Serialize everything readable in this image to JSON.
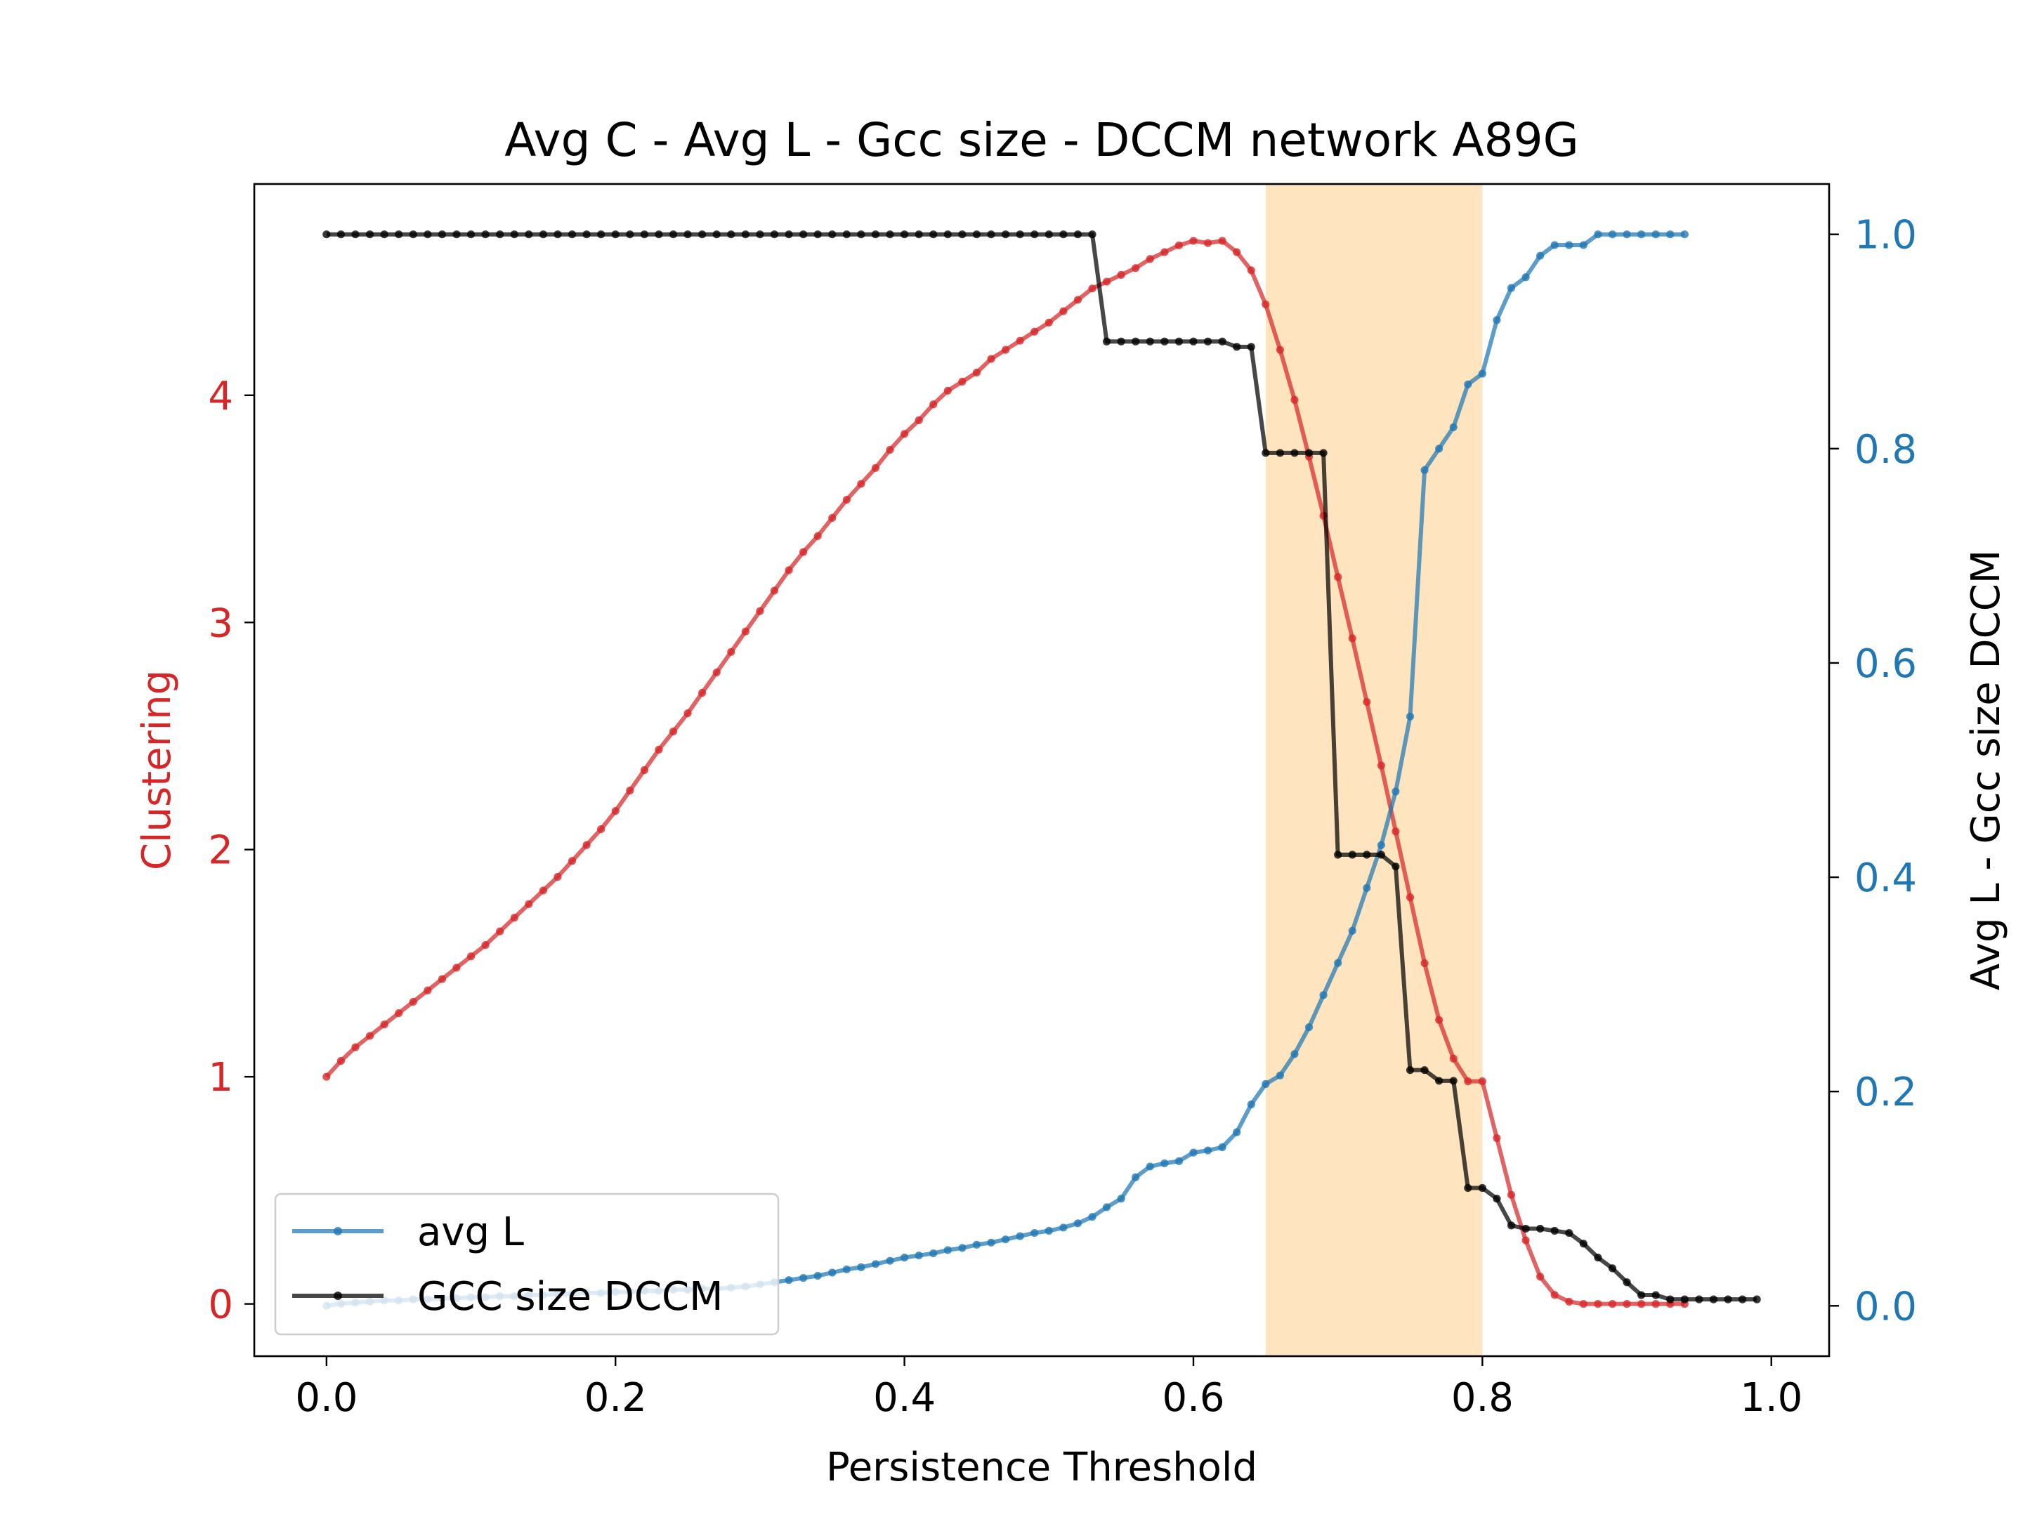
{
  "chart_data": {
    "type": "line",
    "title": "Avg C - Avg L - Gcc size - DCCM network A89G",
    "xlabel": "Persistence Threshold",
    "ylabel_left": "Clustering",
    "ylabel_right": "Avg L - Gcc size DCCM",
    "xlim": [
      -0.05,
      1.04
    ],
    "ylim_left": [
      -0.23,
      4.93
    ],
    "ylim_right": [
      -0.047,
      1.047
    ],
    "x_ticks": [
      0.0,
      0.2,
      0.4,
      0.6,
      0.8,
      1.0
    ],
    "x_tick_labels": [
      "0.0",
      "0.2",
      "0.4",
      "0.6",
      "0.8",
      "1.0"
    ],
    "y_left_ticks": [
      0,
      1,
      2,
      3,
      4
    ],
    "y_left_tick_labels": [
      "0",
      "1",
      "2",
      "3",
      "4"
    ],
    "y_right_ticks": [
      0.0,
      0.2,
      0.4,
      0.6,
      0.8,
      1.0
    ],
    "y_right_tick_labels": [
      "0.0",
      "0.2",
      "0.4",
      "0.6",
      "0.8",
      "1.0"
    ],
    "highlight_band": {
      "x_start": 0.65,
      "x_end": 0.8,
      "color": "#ffe5bf"
    },
    "legend_placement": "lower-left",
    "grid": false,
    "series": [
      {
        "name": "",
        "axis": "left",
        "color": "#d62728",
        "x": [
          0.0,
          0.01,
          0.02,
          0.03,
          0.04,
          0.05,
          0.06,
          0.07,
          0.08,
          0.09,
          0.1,
          0.11,
          0.12,
          0.13,
          0.14,
          0.15,
          0.16,
          0.17,
          0.18,
          0.19,
          0.2,
          0.21,
          0.22,
          0.23,
          0.24,
          0.25,
          0.26,
          0.27,
          0.28,
          0.29,
          0.3,
          0.31,
          0.32,
          0.33,
          0.34,
          0.35,
          0.36,
          0.37,
          0.38,
          0.39,
          0.4,
          0.41,
          0.42,
          0.43,
          0.44,
          0.45,
          0.46,
          0.47,
          0.48,
          0.49,
          0.5,
          0.51,
          0.52,
          0.53,
          0.54,
          0.55,
          0.56,
          0.57,
          0.58,
          0.59,
          0.6,
          0.61,
          0.62,
          0.63,
          0.64,
          0.65,
          0.66,
          0.67,
          0.68,
          0.69,
          0.7,
          0.71,
          0.72,
          0.73,
          0.74,
          0.75,
          0.76,
          0.77,
          0.78,
          0.79,
          0.8,
          0.81,
          0.82,
          0.83,
          0.84,
          0.85,
          0.86,
          0.87,
          0.88,
          0.89,
          0.9,
          0.91,
          0.92,
          0.93,
          0.94
        ],
        "y": [
          1.0,
          1.07,
          1.13,
          1.18,
          1.23,
          1.28,
          1.33,
          1.38,
          1.43,
          1.48,
          1.53,
          1.58,
          1.64,
          1.7,
          1.76,
          1.82,
          1.88,
          1.95,
          2.02,
          2.09,
          2.17,
          2.26,
          2.35,
          2.44,
          2.52,
          2.6,
          2.69,
          2.78,
          2.87,
          2.96,
          3.05,
          3.14,
          3.23,
          3.31,
          3.38,
          3.46,
          3.54,
          3.61,
          3.68,
          3.76,
          3.83,
          3.89,
          3.96,
          4.02,
          4.06,
          4.1,
          4.16,
          4.2,
          4.24,
          4.28,
          4.32,
          4.37,
          4.42,
          4.47,
          4.5,
          4.53,
          4.56,
          4.6,
          4.63,
          4.66,
          4.68,
          4.67,
          4.68,
          4.63,
          4.55,
          4.4,
          4.2,
          3.98,
          3.73,
          3.47,
          3.2,
          2.93,
          2.65,
          2.37,
          2.08,
          1.79,
          1.5,
          1.25,
          1.08,
          0.98,
          0.98,
          0.73,
          0.48,
          0.28,
          0.12,
          0.04,
          0.01,
          0.0,
          0.0,
          0.0,
          0.0,
          0.0,
          0.0,
          0.0,
          0.0
        ]
      },
      {
        "name": "avg L",
        "axis": "right",
        "color": "#1f77b4",
        "x": [
          0.0,
          0.01,
          0.02,
          0.03,
          0.04,
          0.05,
          0.06,
          0.07,
          0.08,
          0.09,
          0.1,
          0.11,
          0.12,
          0.13,
          0.14,
          0.15,
          0.16,
          0.17,
          0.18,
          0.19,
          0.2,
          0.21,
          0.22,
          0.23,
          0.24,
          0.25,
          0.26,
          0.27,
          0.28,
          0.29,
          0.3,
          0.31,
          0.32,
          0.33,
          0.34,
          0.35,
          0.36,
          0.37,
          0.38,
          0.39,
          0.4,
          0.41,
          0.42,
          0.43,
          0.44,
          0.45,
          0.46,
          0.47,
          0.48,
          0.49,
          0.5,
          0.51,
          0.52,
          0.53,
          0.54,
          0.55,
          0.56,
          0.57,
          0.58,
          0.59,
          0.6,
          0.61,
          0.62,
          0.63,
          0.64,
          0.65,
          0.66,
          0.67,
          0.68,
          0.69,
          0.7,
          0.71,
          0.72,
          0.73,
          0.74,
          0.75,
          0.76,
          0.77,
          0.78,
          0.79,
          0.8,
          0.81,
          0.82,
          0.83,
          0.84,
          0.85,
          0.86,
          0.87,
          0.88,
          0.89,
          0.9,
          0.91,
          0.92,
          0.93,
          0.94
        ],
        "y": [
          0.0,
          0.002,
          0.003,
          0.004,
          0.005,
          0.005,
          0.006,
          0.006,
          0.007,
          0.007,
          0.008,
          0.008,
          0.009,
          0.009,
          0.01,
          0.01,
          0.011,
          0.011,
          0.012,
          0.012,
          0.013,
          0.013,
          0.014,
          0.014,
          0.015,
          0.015,
          0.016,
          0.016,
          0.017,
          0.018,
          0.02,
          0.022,
          0.024,
          0.026,
          0.028,
          0.031,
          0.034,
          0.036,
          0.039,
          0.042,
          0.045,
          0.047,
          0.049,
          0.052,
          0.054,
          0.057,
          0.059,
          0.062,
          0.065,
          0.068,
          0.07,
          0.073,
          0.077,
          0.083,
          0.092,
          0.1,
          0.12,
          0.13,
          0.133,
          0.135,
          0.143,
          0.145,
          0.148,
          0.162,
          0.188,
          0.207,
          0.215,
          0.235,
          0.26,
          0.29,
          0.32,
          0.35,
          0.39,
          0.43,
          0.48,
          0.55,
          0.78,
          0.8,
          0.82,
          0.86,
          0.87,
          0.92,
          0.95,
          0.96,
          0.98,
          0.99,
          0.99,
          0.99,
          1.0,
          1.0,
          1.0,
          1.0,
          1.0,
          1.0,
          1.0
        ]
      },
      {
        "name": "GCC size DCCM",
        "axis": "right",
        "color": "#000000",
        "x": [
          0.0,
          0.01,
          0.02,
          0.03,
          0.04,
          0.05,
          0.06,
          0.07,
          0.08,
          0.09,
          0.1,
          0.11,
          0.12,
          0.13,
          0.14,
          0.15,
          0.16,
          0.17,
          0.18,
          0.19,
          0.2,
          0.21,
          0.22,
          0.23,
          0.24,
          0.25,
          0.26,
          0.27,
          0.28,
          0.29,
          0.3,
          0.31,
          0.32,
          0.33,
          0.34,
          0.35,
          0.36,
          0.37,
          0.38,
          0.39,
          0.4,
          0.41,
          0.42,
          0.43,
          0.44,
          0.45,
          0.46,
          0.47,
          0.48,
          0.49,
          0.5,
          0.51,
          0.52,
          0.53,
          0.54,
          0.55,
          0.56,
          0.57,
          0.58,
          0.59,
          0.6,
          0.61,
          0.62,
          0.63,
          0.64,
          0.65,
          0.66,
          0.67,
          0.68,
          0.69,
          0.7,
          0.71,
          0.72,
          0.73,
          0.74,
          0.75,
          0.76,
          0.77,
          0.78,
          0.79,
          0.8,
          0.81,
          0.82,
          0.83,
          0.84,
          0.85,
          0.86,
          0.87,
          0.88,
          0.89,
          0.9,
          0.91,
          0.92,
          0.93,
          0.94,
          0.95,
          0.96,
          0.97,
          0.98,
          0.99
        ],
        "y": [
          1.0,
          1.0,
          1.0,
          1.0,
          1.0,
          1.0,
          1.0,
          1.0,
          1.0,
          1.0,
          1.0,
          1.0,
          1.0,
          1.0,
          1.0,
          1.0,
          1.0,
          1.0,
          1.0,
          1.0,
          1.0,
          1.0,
          1.0,
          1.0,
          1.0,
          1.0,
          1.0,
          1.0,
          1.0,
          1.0,
          1.0,
          1.0,
          1.0,
          1.0,
          1.0,
          1.0,
          1.0,
          1.0,
          1.0,
          1.0,
          1.0,
          1.0,
          1.0,
          1.0,
          1.0,
          1.0,
          1.0,
          1.0,
          1.0,
          1.0,
          1.0,
          1.0,
          1.0,
          1.0,
          0.9,
          0.9,
          0.9,
          0.9,
          0.9,
          0.9,
          0.9,
          0.9,
          0.9,
          0.895,
          0.895,
          0.796,
          0.796,
          0.796,
          0.796,
          0.796,
          0.421,
          0.421,
          0.421,
          0.421,
          0.41,
          0.22,
          0.22,
          0.21,
          0.21,
          0.11,
          0.11,
          0.1,
          0.075,
          0.072,
          0.072,
          0.07,
          0.068,
          0.058,
          0.045,
          0.035,
          0.022,
          0.01,
          0.01,
          0.006,
          0.006,
          0.006,
          0.006,
          0.006,
          0.006,
          0.006
        ]
      }
    ]
  }
}
